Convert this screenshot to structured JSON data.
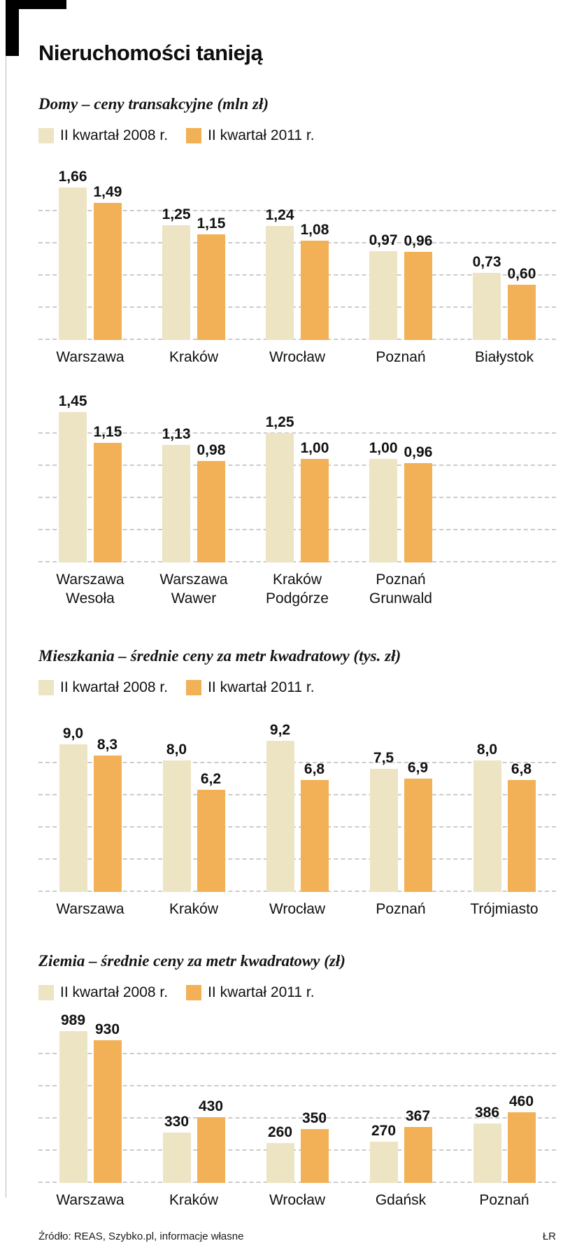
{
  "header": {
    "title": "Nieruchomości tanieją"
  },
  "legend": {
    "s2008": "II kwartał 2008 r.",
    "s2011": "II kwartał 2011 r."
  },
  "colors": {
    "s2008": "#ede4c4",
    "s2011": "#f2b156",
    "grid": "#cbcbcb"
  },
  "chart_data": [
    {
      "type": "bar",
      "title": "Domy – ceny transakcyjne (mln zł)",
      "row": 1,
      "legend": [
        "II kwartał 2008 r.",
        "II kwartał 2011 r."
      ],
      "legend_position": "top",
      "grid": true,
      "grid_lines": 5,
      "columns": 5,
      "ymax": 1.75,
      "categories": [
        "Warszawa",
        "Kraków",
        "Wrocław",
        "Poznań",
        "Białystok"
      ],
      "series": [
        {
          "name": "II kwartał 2008 r.",
          "values": [
            1.66,
            1.25,
            1.24,
            0.97,
            0.73
          ],
          "labels": [
            "1,66",
            "1,25",
            "1,24",
            "0,97",
            "0,73"
          ]
        },
        {
          "name": "II kwartał 2011 r.",
          "values": [
            1.49,
            1.15,
            1.08,
            0.96,
            0.6
          ],
          "labels": [
            "1,49",
            "1,15",
            "1,08",
            "0,96",
            "0,60"
          ]
        }
      ]
    },
    {
      "type": "bar",
      "title": "Domy – ceny transakcyjne (mln zł)",
      "row": 2,
      "legend": [
        "II kwartał 2008 r.",
        "II kwartał 2011 r."
      ],
      "legend_position": "top",
      "grid": true,
      "grid_lines": 5,
      "columns": 5,
      "ymax": 1.55,
      "categories": [
        "Warszawa\nWesoła",
        "Warszawa\nWawer",
        "Kraków\nPodgórze",
        "Poznań\nGrunwald"
      ],
      "series": [
        {
          "name": "II kwartał 2008 r.",
          "values": [
            1.45,
            1.13,
            1.25,
            1.0
          ],
          "labels": [
            "1,45",
            "1,13",
            "1,25",
            "1,00"
          ]
        },
        {
          "name": "II kwartał 2011 r.",
          "values": [
            1.15,
            0.98,
            1.0,
            0.96
          ],
          "labels": [
            "1,15",
            "0,98",
            "1,00",
            "0,96"
          ]
        }
      ]
    },
    {
      "type": "bar",
      "title": "Mieszkania – średnie ceny za metr kwadratowy (tys. zł)",
      "legend": [
        "II kwartał 2008 r.",
        "II kwartał 2011 r."
      ],
      "legend_position": "top",
      "grid": true,
      "grid_lines": 5,
      "columns": 5,
      "ymax": 9.8,
      "categories": [
        "Warszawa",
        "Kraków",
        "Wrocław",
        "Poznań",
        "Trójmiasto"
      ],
      "series": [
        {
          "name": "II kwartał 2008 r.",
          "values": [
            9.0,
            8.0,
            9.2,
            7.5,
            8.0
          ],
          "labels": [
            "9,0",
            "8,0",
            "9,2",
            "7,5",
            "8,0"
          ]
        },
        {
          "name": "II kwartał 2011 r.",
          "values": [
            8.3,
            6.2,
            6.8,
            6.9,
            6.8
          ],
          "labels": [
            "8,3",
            "6,2",
            "6,8",
            "6,9",
            "6,8"
          ]
        }
      ]
    },
    {
      "type": "bar",
      "title": "Ziemia – średnie ceny za metr kwadratowy (zł)",
      "legend": [
        "II kwartał 2008 r.",
        "II kwartał 2011 r."
      ],
      "legend_position": "top",
      "grid": true,
      "grid_lines": 5,
      "columns": 5,
      "ymax": 1050,
      "categories": [
        "Warszawa",
        "Kraków",
        "Wrocław",
        "Gdańsk",
        "Poznań"
      ],
      "series": [
        {
          "name": "II kwartał 2008 r.",
          "values": [
            989,
            330,
            260,
            270,
            386
          ],
          "labels": [
            "989",
            "330",
            "260",
            "270",
            "386"
          ]
        },
        {
          "name": "II kwartał 2011 r.",
          "values": [
            930,
            430,
            350,
            367,
            460
          ],
          "labels": [
            "930",
            "430",
            "350",
            "367",
            "460"
          ]
        }
      ]
    }
  ],
  "footer": {
    "source": "Źródło: REAS, Szybko.pl, informacje własne",
    "credit": "ŁR"
  }
}
